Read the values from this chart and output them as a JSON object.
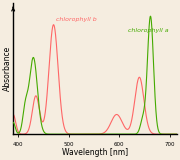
{
  "xlabel": "Wavelength [nm]",
  "ylabel": "Absorbance",
  "xlim": [
    390,
    715
  ],
  "ylim": [
    0,
    1.08
  ],
  "chl_a_color": "#44aa00",
  "chl_b_color": "#ff6666",
  "chl_a_label": "chlorophyll a",
  "chl_b_label": "chlorophyll b",
  "background_color": "#f5ede0",
  "label_fontsize": 4.5,
  "axis_fontsize": 5.5,
  "tick_fontsize": 4.0
}
